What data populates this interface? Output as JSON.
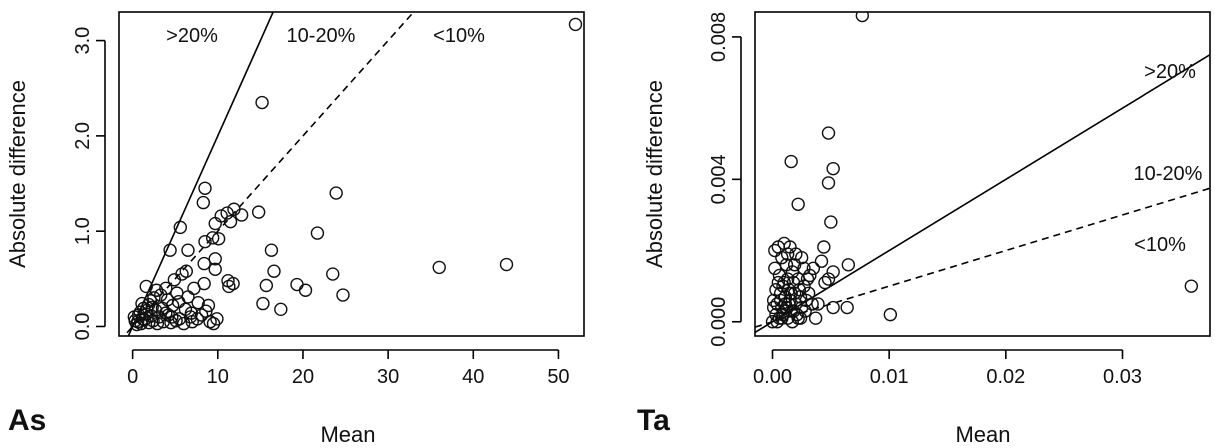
{
  "chart_data": [
    {
      "type": "scatter",
      "panel_label": "As",
      "xlabel": "Mean",
      "ylabel": "Absolute difference",
      "xlim": [
        -1.6,
        53
      ],
      "ylim": [
        -0.1,
        3.3
      ],
      "xticks": [
        "0",
        "10",
        "20",
        "30",
        "40",
        "50"
      ],
      "xtick_values": [
        0,
        10,
        20,
        30,
        40,
        50
      ],
      "yticks": [
        "0.0",
        "1.0",
        "2.0",
        "3.0"
      ],
      "ytick_values": [
        0,
        1,
        2,
        3
      ],
      "reference_lines": [
        {
          "name": ">20%",
          "slope": 0.2,
          "style": "solid"
        },
        {
          "name": "10-20%",
          "slope": 0.1,
          "style": "dashed"
        }
      ],
      "region_labels": [
        ">20%",
        "10-20%",
        "<10%"
      ],
      "points": [
        [
          52,
          3.17
        ],
        [
          15.2,
          2.35
        ],
        [
          23.9,
          1.4
        ],
        [
          8.5,
          1.45
        ],
        [
          5.6,
          1.04
        ],
        [
          8.3,
          1.3
        ],
        [
          11.9,
          1.23
        ],
        [
          12.8,
          1.17
        ],
        [
          11.1,
          1.19
        ],
        [
          11.5,
          1.1
        ],
        [
          14.8,
          1.2
        ],
        [
          10.4,
          1.16
        ],
        [
          9.7,
          1.08
        ],
        [
          9.4,
          0.93
        ],
        [
          10.1,
          0.92
        ],
        [
          8.5,
          0.89
        ],
        [
          21.7,
          0.98
        ],
        [
          16.3,
          0.8
        ],
        [
          6.5,
          0.8
        ],
        [
          4.4,
          0.8
        ],
        [
          23.5,
          0.55
        ],
        [
          16.6,
          0.58
        ],
        [
          9.7,
          0.71
        ],
        [
          8.4,
          0.66
        ],
        [
          9.7,
          0.6
        ],
        [
          36,
          0.62
        ],
        [
          43.9,
          0.65
        ],
        [
          11.2,
          0.48
        ],
        [
          11.3,
          0.42
        ],
        [
          11.8,
          0.45
        ],
        [
          15.7,
          0.43
        ],
        [
          19.3,
          0.44
        ],
        [
          20.3,
          0.38
        ],
        [
          24.7,
          0.33
        ],
        [
          15.3,
          0.24
        ],
        [
          17.4,
          0.18
        ],
        [
          8.4,
          0.45
        ],
        [
          6.3,
          0.58
        ],
        [
          5.8,
          0.55
        ],
        [
          4.9,
          0.49
        ],
        [
          7.2,
          0.4
        ],
        [
          3.9,
          0.4
        ],
        [
          5.2,
          0.35
        ],
        [
          6.5,
          0.31
        ],
        [
          3.3,
          0.33
        ],
        [
          1.6,
          0.42
        ],
        [
          2.1,
          0.27
        ],
        [
          2.5,
          0.3
        ],
        [
          1.9,
          0.23
        ],
        [
          7.7,
          0.25
        ],
        [
          8.9,
          0.22
        ],
        [
          4.7,
          0.22
        ],
        [
          6.2,
          0.18
        ],
        [
          3.5,
          0.19
        ],
        [
          2.7,
          0.17
        ],
        [
          1.3,
          0.19
        ],
        [
          0.9,
          0.15
        ],
        [
          1.6,
          0.13
        ],
        [
          2.2,
          0.11
        ],
        [
          3.1,
          0.1
        ],
        [
          4.2,
          0.12
        ],
        [
          5.5,
          0.08
        ],
        [
          6.8,
          0.1
        ],
        [
          8.1,
          0.12
        ],
        [
          9.1,
          0.05
        ],
        [
          9.9,
          0.08
        ],
        [
          0.3,
          0.06
        ],
        [
          0.6,
          0.05
        ],
        [
          1,
          0.03
        ],
        [
          1.4,
          0.07
        ],
        [
          1.9,
          0.04
        ],
        [
          2.4,
          0.06
        ],
        [
          2.9,
          0.03
        ],
        [
          3.6,
          0.05
        ],
        [
          4.5,
          0.04
        ],
        [
          5.1,
          0.06
        ],
        [
          6,
          0.03
        ],
        [
          7,
          0.05
        ],
        [
          0.2,
          0.1
        ],
        [
          0.7,
          0.12
        ],
        [
          1.2,
          0.08
        ],
        [
          1.7,
          0.17
        ],
        [
          2.3,
          0.2
        ],
        [
          3.9,
          0.14
        ],
        [
          4.6,
          0.1
        ],
        [
          7.6,
          0.08
        ],
        [
          8.6,
          0.16
        ],
        [
          1.1,
          0.24
        ],
        [
          2.8,
          0.38
        ],
        [
          4.1,
          0.28
        ],
        [
          5.4,
          0.26
        ],
        [
          6.9,
          0.14
        ],
        [
          9.5,
          0.03
        ],
        [
          0.5,
          0.02
        ]
      ]
    },
    {
      "type": "scatter",
      "panel_label": "Ta",
      "xlabel": "Mean",
      "ylabel": "Absolute difference",
      "xlim": [
        -0.0015,
        0.0375
      ],
      "ylim": [
        -0.0004,
        0.0087
      ],
      "xticks": [
        "0.00",
        "0.01",
        "0.02",
        "0.03"
      ],
      "xtick_values": [
        0,
        0.01,
        0.02,
        0.03
      ],
      "yticks": [
        "0.000",
        "0.004",
        "0.008"
      ],
      "ytick_values": [
        0,
        0.004,
        0.008
      ],
      "reference_lines": [
        {
          "name": ">20%",
          "slope": 0.2,
          "style": "solid"
        },
        {
          "name": "10-20%",
          "slope": 0.1,
          "style": "dashed"
        }
      ],
      "region_labels": [
        ">20%",
        "10-20%",
        "<10%"
      ],
      "points": [
        [
          0.0077,
          0.0086
        ],
        [
          0.0048,
          0.0053
        ],
        [
          0.0016,
          0.0045
        ],
        [
          0.0052,
          0.0043
        ],
        [
          0.0048,
          0.0039
        ],
        [
          0.0022,
          0.0033
        ],
        [
          0.005,
          0.0028
        ],
        [
          0.0359,
          0.001
        ],
        [
          0.0044,
          0.0021
        ],
        [
          0.0065,
          0.0016
        ],
        [
          0.0042,
          0.0017
        ],
        [
          0.0035,
          0.0015
        ],
        [
          0.0052,
          0.0014
        ],
        [
          0.0048,
          0.0012
        ],
        [
          0.0045,
          0.0011
        ],
        [
          0.0032,
          0.0013
        ],
        [
          0.0025,
          0.0018
        ],
        [
          0.002,
          0.0019
        ],
        [
          0.0015,
          0.0021
        ],
        [
          0.001,
          0.0022
        ],
        [
          0.0005,
          0.0021
        ],
        [
          0.0002,
          0.002
        ],
        [
          0.0008,
          0.0018
        ],
        [
          0.0012,
          0.0016
        ],
        [
          0.0017,
          0.0014
        ],
        [
          0.0022,
          0.0012
        ],
        [
          0.0027,
          0.001
        ],
        [
          0.0031,
          0.0008
        ],
        [
          0.0002,
          0.0015
        ],
        [
          0.0006,
          0.0013
        ],
        [
          0.001,
          0.0011
        ],
        [
          0.0014,
          0.0009
        ],
        [
          0.0019,
          0.0008
        ],
        [
          0.0024,
          0.0007
        ],
        [
          0.0003,
          0.0009
        ],
        [
          0.0007,
          0.0008
        ],
        [
          0.0011,
          0.0007
        ],
        [
          0.0015,
          0.0006
        ],
        [
          0.002,
          0.0005
        ],
        [
          0.0025,
          0.0004
        ],
        [
          0.0001,
          0.0006
        ],
        [
          0.0004,
          0.0005
        ],
        [
          0.0008,
          0.0004
        ],
        [
          0.0012,
          0.0004
        ],
        [
          0.0016,
          0.0003
        ],
        [
          0.0021,
          0.0002
        ],
        [
          0.0003,
          0.0002
        ],
        [
          0.0006,
          0.0001
        ],
        [
          0.0009,
          0.0002
        ],
        [
          0.0013,
          0.0001
        ],
        [
          0.0017,
          0.0
        ],
        [
          0.0022,
          0.0001
        ],
        [
          0.0,
          0.0
        ],
        [
          0.0004,
          0.0
        ],
        [
          0.001,
          0.0003
        ],
        [
          0.0014,
          0.0005
        ],
        [
          0.0018,
          0.0003
        ],
        [
          0.0028,
          0.0003
        ],
        [
          0.0037,
          0.0001
        ],
        [
          0.0052,
          0.0004
        ],
        [
          0.0064,
          0.0004
        ],
        [
          0.0101,
          0.0002
        ],
        [
          0.0005,
          0.0011
        ],
        [
          0.0009,
          0.001
        ],
        [
          0.0013,
          0.0012
        ],
        [
          0.0018,
          0.0011
        ],
        [
          0.0023,
          0.0009
        ],
        [
          0.0029,
          0.0006
        ],
        [
          0.0034,
          0.0005
        ],
        [
          0.0039,
          0.0005
        ],
        [
          0.0001,
          0.0004
        ],
        [
          0.0007,
          0.0006
        ],
        [
          0.0011,
          0.0005
        ],
        [
          0.0016,
          0.0008
        ],
        [
          0.0027,
          0.0015
        ],
        [
          0.003,
          0.0012
        ],
        [
          0.0019,
          0.0016
        ],
        [
          0.0013,
          0.0019
        ],
        [
          0.0024,
          0.0001
        ],
        [
          0.0008,
          0.0001
        ]
      ]
    }
  ]
}
